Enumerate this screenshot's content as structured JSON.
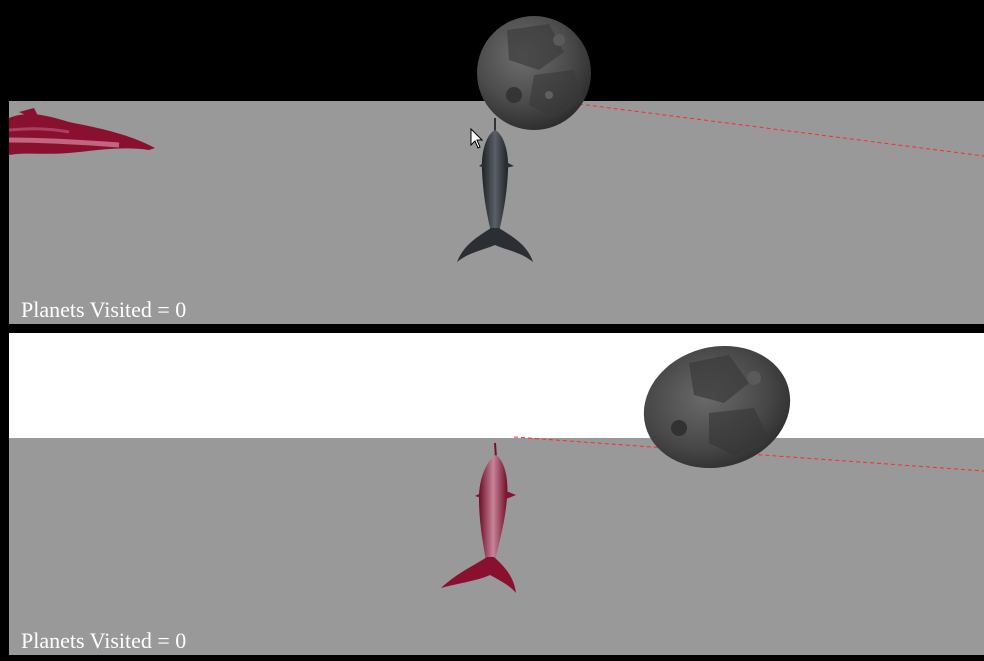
{
  "top_view": {
    "hud_text": "Planets Visited = 0",
    "sky_color": "#000000",
    "floor_color": "#999999",
    "player_dolphin_color": "#2b2f33",
    "other_dolphin_color": "#8a1030",
    "planet_color": "#4a4a4a",
    "laser_color": "#ff2a2a"
  },
  "bottom_view": {
    "hud_text": "Planets Visited = 0",
    "sky_color": "#ffffff",
    "floor_color": "#999999",
    "player_dolphin_color": "#8a1030",
    "planet_color": "#4a4a4a",
    "laser_color": "#ff2a2a"
  }
}
